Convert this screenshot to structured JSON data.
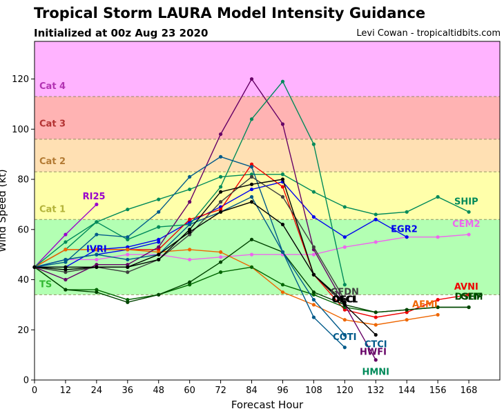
{
  "header": {
    "title": "Tropical Storm LAURA Model Intensity Guidance",
    "subtitle": "Initialized at 00z Aug 23 2020",
    "credit": "Levi Cowan - tropicaltidbits.com"
  },
  "chart_data": {
    "type": "line",
    "xlabel": "Forecast Hour",
    "ylabel": "Wind Speed (kt)",
    "xlim": [
      0,
      180
    ],
    "ylim": [
      0,
      135
    ],
    "xticks": [
      0,
      12,
      24,
      36,
      48,
      60,
      72,
      84,
      96,
      108,
      120,
      132,
      144,
      156,
      168
    ],
    "yticks": [
      0,
      20,
      40,
      60,
      80,
      100,
      120
    ],
    "bands": [
      {
        "label": "TS",
        "from": 34,
        "to": 64,
        "fill": "#b3ffb3",
        "label_color": "#33b833",
        "label_y": 37
      },
      {
        "label": "Cat 1",
        "from": 64,
        "to": 83,
        "fill": "#ffffaa",
        "label_color": "#b3b33a",
        "label_y": 67
      },
      {
        "label": "Cat 2",
        "from": 83,
        "to": 96,
        "fill": "#ffe0b3",
        "label_color": "#b37a33",
        "label_y": 86
      },
      {
        "label": "Cat 3",
        "from": 96,
        "to": 113,
        "fill": "#ffb3b3",
        "label_color": "#b33333",
        "label_y": 101
      },
      {
        "label": "Cat 4",
        "from": 113,
        "to": 135,
        "fill": "#ffb3ff",
        "label_color": "#b333b3",
        "label_y": 116
      }
    ],
    "series": [
      {
        "name": "SHIP",
        "color": "#008a5a",
        "x": [
          0,
          12,
          24,
          36,
          48,
          60,
          72,
          84,
          96,
          108,
          120,
          132,
          144,
          156,
          168
        ],
        "y": [
          45,
          52,
          63,
          68,
          72,
          76,
          81,
          82,
          82,
          75,
          69,
          66,
          67,
          73,
          67
        ],
        "label_x": 167,
        "label_y": 70
      },
      {
        "name": "CEM2",
        "color": "#ee66ee",
        "x": [
          0,
          12,
          24,
          36,
          48,
          60,
          72,
          84,
          96,
          108,
          120,
          132,
          144,
          156,
          168
        ],
        "y": [
          45,
          48,
          48,
          50,
          50,
          48,
          49,
          50,
          50,
          50,
          53,
          55,
          57,
          57,
          58
        ],
        "label_x": 167,
        "label_y": 61
      },
      {
        "name": "EGR2",
        "color": "#0000ee",
        "x": [
          0,
          12,
          24,
          36,
          48,
          60,
          72,
          84,
          96,
          108,
          120,
          132,
          144
        ],
        "y": [
          45,
          45,
          52,
          53,
          56,
          63,
          69,
          76,
          79,
          65,
          57,
          64,
          57
        ],
        "label_x": 143,
        "label_y": 59
      },
      {
        "name": "IVRI",
        "color": "#0000ee",
        "x": [
          0,
          12,
          24,
          36,
          48
        ],
        "y": [
          45,
          48,
          50,
          52,
          55
        ],
        "label_x": 24,
        "label_y": 51
      },
      {
        "name": "RI25",
        "color": "#9900cc",
        "x": [
          0,
          12,
          24
        ],
        "y": [
          45,
          58,
          70
        ],
        "label_x": 23,
        "label_y": 72
      },
      {
        "name": "AVNI",
        "color": "#ee0000",
        "x": [
          0,
          12,
          24,
          36,
          48,
          60,
          72,
          84,
          96,
          108,
          120,
          132,
          144,
          156,
          168
        ],
        "y": [
          45,
          52,
          52,
          52,
          52,
          64,
          68,
          86,
          77,
          42,
          28,
          25,
          27,
          32,
          34
        ],
        "label_x": 167,
        "label_y": 36
      },
      {
        "name": "AEMI",
        "color": "#ee6600",
        "x": [
          0,
          12,
          24,
          36,
          48,
          60,
          72,
          84,
          96,
          108,
          120,
          132,
          144,
          156
        ],
        "y": [
          45,
          52,
          52,
          52,
          51,
          52,
          51,
          45,
          35,
          30,
          24,
          22,
          24,
          26
        ],
        "label_x": 151,
        "label_y": 29
      },
      {
        "name": "DSHP",
        "color": "#006600",
        "x": [
          0,
          12,
          24,
          36,
          48,
          60,
          72,
          84,
          96,
          108,
          120,
          132,
          144,
          156,
          168
        ],
        "y": [
          45,
          36,
          36,
          32,
          34,
          38,
          43,
          45,
          38,
          34,
          29,
          27,
          28,
          29,
          29
        ],
        "label_x": 168,
        "label_y": 32
      },
      {
        "name": "LGEM",
        "color": "#004400",
        "x": [
          0,
          12,
          24,
          36,
          48,
          60,
          72,
          84,
          96,
          108,
          120,
          132,
          144,
          156,
          168
        ],
        "y": [
          45,
          36,
          35,
          31,
          34,
          39,
          47,
          56,
          51,
          35,
          30,
          27,
          28,
          29,
          29
        ],
        "label_x": 168,
        "label_y": 32
      },
      {
        "name": "HWFI",
        "color": "#660066",
        "x": [
          0,
          12,
          24,
          36,
          48,
          60,
          72,
          84,
          96,
          108,
          120,
          132
        ],
        "y": [
          45,
          40,
          46,
          46,
          53,
          71,
          98,
          120,
          102,
          52,
          30,
          8
        ],
        "label_x": 131,
        "label_y": 10
      },
      {
        "name": "HMNI",
        "color": "#008a5a",
        "x": [
          0,
          12,
          24,
          36,
          48,
          60,
          72,
          84,
          96,
          108,
          120
        ],
        "y": [
          45,
          55,
          63,
          56,
          61,
          62,
          77,
          104,
          119,
          94,
          38
        ],
        "label_x": 132,
        "label_y": 2
      },
      {
        "name": "CTCI",
        "color": "#005a8a",
        "x": [
          0,
          12,
          24,
          36,
          48,
          60,
          72,
          84,
          96,
          108,
          120
        ],
        "y": [
          45,
          47,
          58,
          57,
          67,
          81,
          89,
          85,
          51,
          25,
          13
        ],
        "label_x": 132,
        "label_y": 13
      },
      {
        "name": "COTI",
        "color": "#005a8a",
        "x": [
          0,
          12,
          24,
          36,
          48,
          60,
          72,
          84,
          96,
          108,
          120
        ],
        "y": [
          45,
          48,
          50,
          48,
          50,
          62,
          67,
          73,
          51,
          32,
          18
        ],
        "label_x": 120,
        "label_y": 16
      },
      {
        "name": "GFDN",
        "color": "#404040",
        "x": [
          0,
          12,
          24,
          36,
          48,
          60,
          72,
          84,
          96,
          108,
          120
        ],
        "y": [
          45,
          43,
          45,
          43,
          48,
          58,
          71,
          81,
          73,
          53,
          32
        ],
        "label_x": 120,
        "label_y": 34
      },
      {
        "name": "OFCI",
        "color": "#000000",
        "x": [
          0,
          12,
          24,
          36,
          48,
          60,
          72,
          84,
          96,
          108,
          120,
          132
        ],
        "y": [
          45,
          44,
          45,
          45,
          48,
          60,
          75,
          78,
          80,
          42,
          30,
          18
        ],
        "label_x": 120,
        "label_y": 31
      },
      {
        "name": "OFCL",
        "color": "#000000",
        "x": [
          0,
          12,
          24,
          36,
          48,
          60,
          72,
          84,
          96,
          108,
          120
        ],
        "y": [
          45,
          45,
          45,
          45,
          50,
          59,
          67,
          71,
          62,
          42,
          31
        ],
        "label_x": 120,
        "label_y": 31
      }
    ]
  }
}
